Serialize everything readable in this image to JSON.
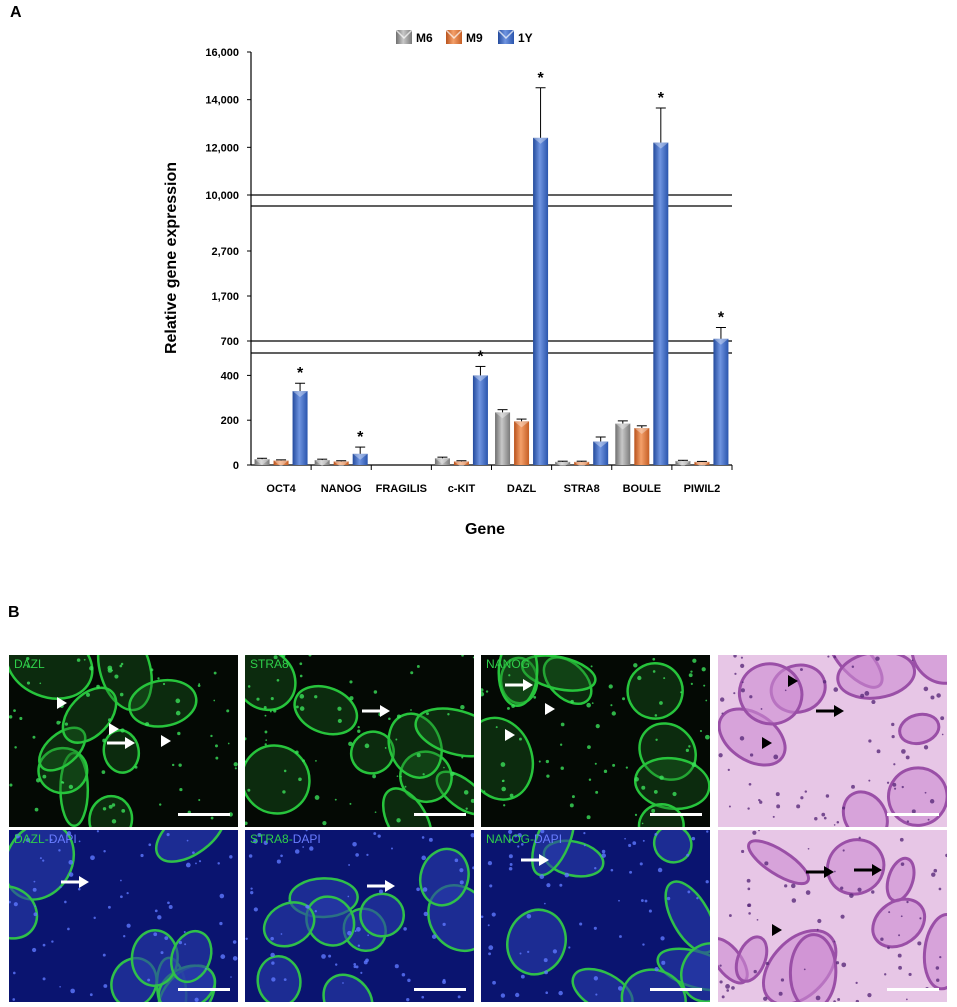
{
  "panels": {
    "a_letter": "A",
    "b_letter": "B"
  },
  "chart_data": {
    "type": "bar",
    "xlabel": "Gene",
    "ylabel": "Relative gene expression",
    "categories": [
      "OCT4",
      "NANOG",
      "FRAGILIS",
      "c-KIT",
      "DAZL",
      "STRA8",
      "BOULE",
      "PIWIL2"
    ],
    "series": [
      {
        "name": "M6",
        "color": "#9a9a9a",
        "values": [
          26,
          22,
          0,
          30,
          235,
          14,
          185,
          18
        ],
        "errors": [
          4,
          4,
          0,
          5,
          12,
          3,
          12,
          3
        ]
      },
      {
        "name": "M9",
        "color": "#e6773a",
        "values": [
          20,
          16,
          0,
          16,
          195,
          14,
          165,
          14
        ],
        "errors": [
          3,
          3,
          0,
          3,
          10,
          3,
          10,
          2
        ]
      },
      {
        "name": "1Y",
        "color": "#3b64c2",
        "values": [
          330,
          50,
          0,
          400,
          12400,
          105,
          12200,
          750
        ],
        "errors": [
          35,
          30,
          0,
          40,
          2100,
          20,
          1450,
          250
        ]
      }
    ],
    "significance": [
      {
        "series": "1Y",
        "category": "OCT4",
        "mark": "*"
      },
      {
        "series": "1Y",
        "category": "NANOG",
        "mark": "*"
      },
      {
        "series": "1Y",
        "category": "c-KIT",
        "mark": "*"
      },
      {
        "series": "1Y",
        "category": "DAZL",
        "mark": "*"
      },
      {
        "series": "1Y",
        "category": "BOULE",
        "mark": "*"
      },
      {
        "series": "1Y",
        "category": "PIWIL2",
        "mark": "*"
      }
    ],
    "broken_axis": true,
    "y_segments": [
      {
        "range": [
          0,
          500
        ],
        "ticks": [
          0,
          200,
          400
        ]
      },
      {
        "range": [
          700,
          3700
        ],
        "ticks": [
          700,
          1700,
          2700
        ]
      },
      {
        "range": [
          10000,
          16000
        ],
        "ticks": [
          10000,
          12000,
          14000,
          16000
        ]
      }
    ],
    "ytick_labels": [
      "0",
      "200",
      "400",
      "700",
      "1,700",
      "2,700",
      "10,000",
      "12,000",
      "14,000",
      "16,000"
    ],
    "legend_position": "top-center"
  },
  "micrographs": [
    {
      "label_a": "DAZL",
      "label_b": "",
      "stain": "fluorescence",
      "arrows": 1,
      "arrowheads": 3
    },
    {
      "label_a": "STRA8",
      "label_b": "",
      "stain": "fluorescence",
      "arrows": 1,
      "arrowheads": 0
    },
    {
      "label_a": "NANOG",
      "label_b": "",
      "stain": "fluorescence",
      "arrows": 1,
      "arrowheads": 2
    },
    {
      "label_a": "",
      "label_b": "",
      "stain": "he",
      "arrows": 1,
      "arrowheads": 2
    },
    {
      "label_a": "DAZL",
      "label_b": "DAPI",
      "stain": "merge",
      "arrows": 1,
      "arrowheads": 0
    },
    {
      "label_a": "STRA8",
      "label_b": "DAPI",
      "stain": "merge",
      "arrows": 1,
      "arrowheads": 0
    },
    {
      "label_a": "NANOG",
      "label_b": "DAPI",
      "stain": "merge",
      "arrows": 1,
      "arrowheads": 0
    },
    {
      "label_a": "",
      "label_b": "",
      "stain": "he",
      "arrows": 2,
      "arrowheads": 1
    }
  ],
  "label_separator": "-"
}
